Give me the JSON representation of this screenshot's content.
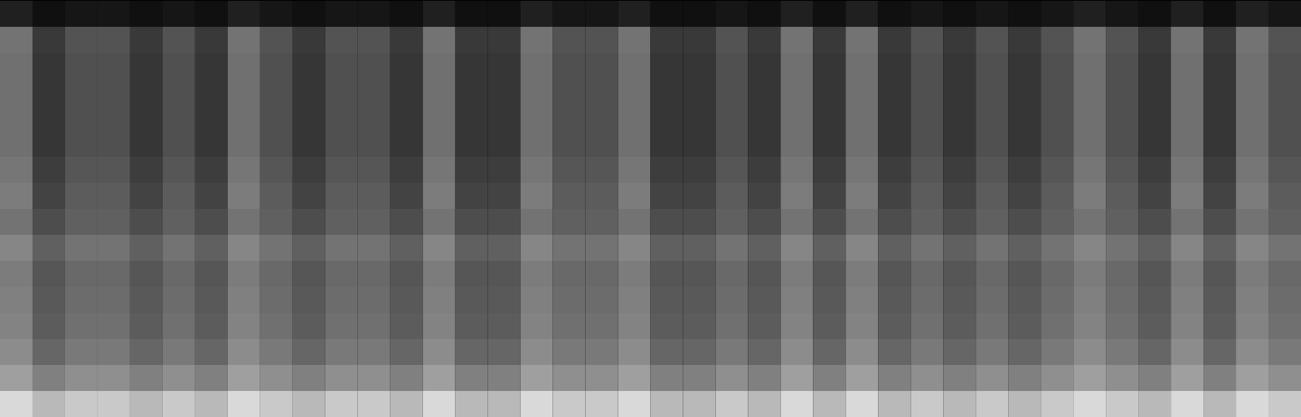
{
  "chart_data": {
    "type": "heatmap",
    "tick_labels": false,
    "zlim": [
      0,
      80
    ],
    "cells": [
      [
        10,
        5,
        7,
        7,
        5,
        7,
        5,
        10,
        7,
        5,
        7,
        7,
        5,
        10,
        5,
        5,
        10,
        7,
        7,
        10,
        5,
        5,
        7,
        5,
        10,
        5,
        10,
        5,
        7,
        5,
        7,
        5,
        7,
        10,
        7,
        5,
        10,
        5,
        10,
        7
      ],
      [
        36,
        18,
        26,
        26,
        18,
        26,
        18,
        36,
        26,
        18,
        26,
        26,
        18,
        36,
        18,
        18,
        36,
        26,
        26,
        36,
        18,
        18,
        26,
        18,
        36,
        18,
        36,
        18,
        26,
        18,
        26,
        18,
        26,
        36,
        26,
        18,
        36,
        18,
        36,
        26
      ],
      [
        35,
        17,
        25,
        25,
        17,
        25,
        17,
        35,
        25,
        17,
        25,
        25,
        17,
        35,
        17,
        17,
        35,
        25,
        25,
        35,
        17,
        17,
        25,
        17,
        35,
        17,
        35,
        17,
        25,
        17,
        25,
        17,
        25,
        35,
        25,
        17,
        35,
        17,
        35,
        25
      ],
      [
        35,
        17,
        25,
        25,
        17,
        25,
        17,
        35,
        25,
        17,
        25,
        25,
        17,
        35,
        17,
        17,
        35,
        25,
        25,
        35,
        17,
        17,
        25,
        17,
        35,
        17,
        35,
        17,
        25,
        17,
        25,
        17,
        25,
        35,
        25,
        17,
        35,
        17,
        35,
        25
      ],
      [
        35,
        17,
        25,
        25,
        17,
        25,
        17,
        35,
        25,
        17,
        25,
        25,
        17,
        35,
        17,
        17,
        35,
        25,
        25,
        35,
        17,
        17,
        25,
        17,
        35,
        17,
        35,
        17,
        25,
        17,
        25,
        17,
        25,
        35,
        25,
        17,
        35,
        17,
        35,
        25
      ],
      [
        35,
        17,
        25,
        25,
        17,
        25,
        17,
        35,
        25,
        17,
        25,
        25,
        17,
        35,
        17,
        17,
        35,
        25,
        25,
        35,
        17,
        17,
        25,
        17,
        35,
        17,
        35,
        17,
        25,
        17,
        25,
        17,
        25,
        35,
        25,
        17,
        35,
        17,
        35,
        25
      ],
      [
        37,
        19,
        27,
        27,
        19,
        27,
        19,
        37,
        27,
        19,
        27,
        27,
        19,
        37,
        19,
        19,
        37,
        27,
        27,
        37,
        19,
        19,
        27,
        19,
        37,
        19,
        37,
        19,
        27,
        19,
        27,
        19,
        27,
        37,
        27,
        19,
        37,
        19,
        37,
        27
      ],
      [
        39,
        21,
        29,
        29,
        21,
        29,
        21,
        39,
        29,
        21,
        29,
        29,
        21,
        39,
        21,
        21,
        39,
        29,
        29,
        39,
        21,
        21,
        29,
        21,
        39,
        21,
        39,
        21,
        29,
        21,
        29,
        21,
        29,
        39,
        29,
        21,
        39,
        21,
        39,
        29
      ],
      [
        36,
        24,
        30,
        30,
        24,
        30,
        24,
        36,
        30,
        24,
        30,
        30,
        24,
        36,
        24,
        24,
        36,
        30,
        30,
        36,
        24,
        24,
        30,
        24,
        36,
        24,
        36,
        24,
        30,
        24,
        30,
        24,
        30,
        36,
        30,
        24,
        36,
        24,
        36,
        30
      ],
      [
        42,
        30,
        36,
        36,
        30,
        36,
        30,
        42,
        36,
        30,
        36,
        36,
        30,
        42,
        30,
        30,
        42,
        36,
        36,
        42,
        30,
        30,
        36,
        30,
        42,
        30,
        42,
        30,
        36,
        30,
        36,
        30,
        36,
        42,
        36,
        30,
        42,
        30,
        42,
        36
      ],
      [
        39,
        27,
        33,
        33,
        27,
        33,
        27,
        39,
        33,
        27,
        33,
        33,
        27,
        39,
        27,
        27,
        39,
        33,
        33,
        39,
        27,
        27,
        33,
        27,
        39,
        27,
        39,
        27,
        33,
        27,
        33,
        27,
        33,
        39,
        33,
        27,
        39,
        27,
        39,
        33
      ],
      [
        40,
        28,
        34,
        34,
        28,
        34,
        28,
        40,
        34,
        28,
        34,
        34,
        28,
        40,
        28,
        28,
        40,
        34,
        34,
        40,
        28,
        28,
        34,
        28,
        40,
        28,
        40,
        28,
        34,
        28,
        34,
        28,
        34,
        40,
        34,
        28,
        40,
        28,
        40,
        34
      ],
      [
        41,
        29,
        35,
        35,
        29,
        35,
        29,
        41,
        35,
        29,
        35,
        35,
        29,
        41,
        29,
        29,
        41,
        35,
        35,
        41,
        29,
        29,
        35,
        29,
        41,
        29,
        41,
        29,
        35,
        29,
        35,
        29,
        35,
        41,
        35,
        29,
        41,
        29,
        41,
        35
      ],
      [
        44,
        32,
        38,
        38,
        32,
        38,
        32,
        44,
        38,
        32,
        38,
        38,
        32,
        44,
        32,
        32,
        44,
        38,
        38,
        44,
        32,
        32,
        38,
        32,
        44,
        32,
        44,
        32,
        38,
        32,
        38,
        32,
        38,
        44,
        38,
        32,
        44,
        32,
        44,
        38
      ],
      [
        50,
        40,
        45,
        45,
        40,
        45,
        40,
        50,
        45,
        40,
        45,
        45,
        40,
        50,
        40,
        40,
        50,
        45,
        45,
        50,
        40,
        40,
        45,
        40,
        50,
        40,
        50,
        40,
        45,
        40,
        45,
        40,
        45,
        50,
        45,
        40,
        50,
        40,
        50,
        45
      ],
      [
        68,
        58,
        63,
        63,
        58,
        63,
        58,
        68,
        63,
        58,
        63,
        63,
        58,
        68,
        58,
        58,
        68,
        63,
        63,
        68,
        58,
        58,
        63,
        58,
        68,
        58,
        68,
        58,
        63,
        58,
        63,
        58,
        63,
        68,
        63,
        58,
        68,
        58,
        68,
        63
      ]
    ]
  }
}
